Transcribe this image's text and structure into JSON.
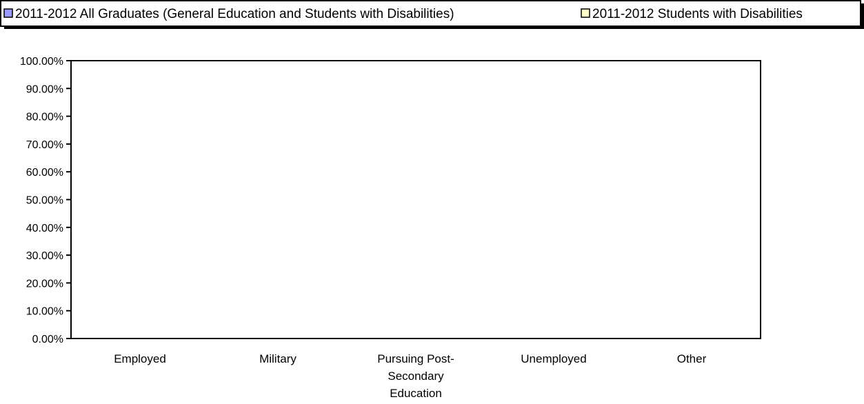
{
  "chart_data": {
    "type": "bar",
    "title": "",
    "xlabel": "",
    "ylabel": "",
    "categories": [
      "Employed",
      "Military",
      "Pursuing Post-Secondary Education",
      "Unemployed",
      "Other"
    ],
    "category_label_lines": [
      [
        "Employed"
      ],
      [
        "Military"
      ],
      [
        "Pursuing Post-",
        "Secondary",
        "Education"
      ],
      [
        "Unemployed"
      ],
      [
        "Other"
      ]
    ],
    "series": [
      {
        "name": "2011-2012 All Graduates (General Education and Students with Disabilities)",
        "color": "#9999ff",
        "values": [
          0,
          0,
          0,
          0,
          0
        ]
      },
      {
        "name": "2011-2012 Students with Disabilities",
        "color": "#ffffcc",
        "values": [
          0,
          0,
          0,
          0,
          0
        ]
      }
    ],
    "ylim": [
      0,
      1
    ],
    "y_ticks": [
      0,
      0.1,
      0.2,
      0.3,
      0.4,
      0.5,
      0.6,
      0.7,
      0.8,
      0.9,
      1.0
    ],
    "y_tick_labels": [
      "0.00%",
      "10.00%",
      "20.00%",
      "30.00%",
      "40.00%",
      "50.00%",
      "60.00%",
      "70.00%",
      "80.00%",
      "90.00%",
      "100.00%"
    ],
    "grid": false,
    "legend_position": "top"
  }
}
